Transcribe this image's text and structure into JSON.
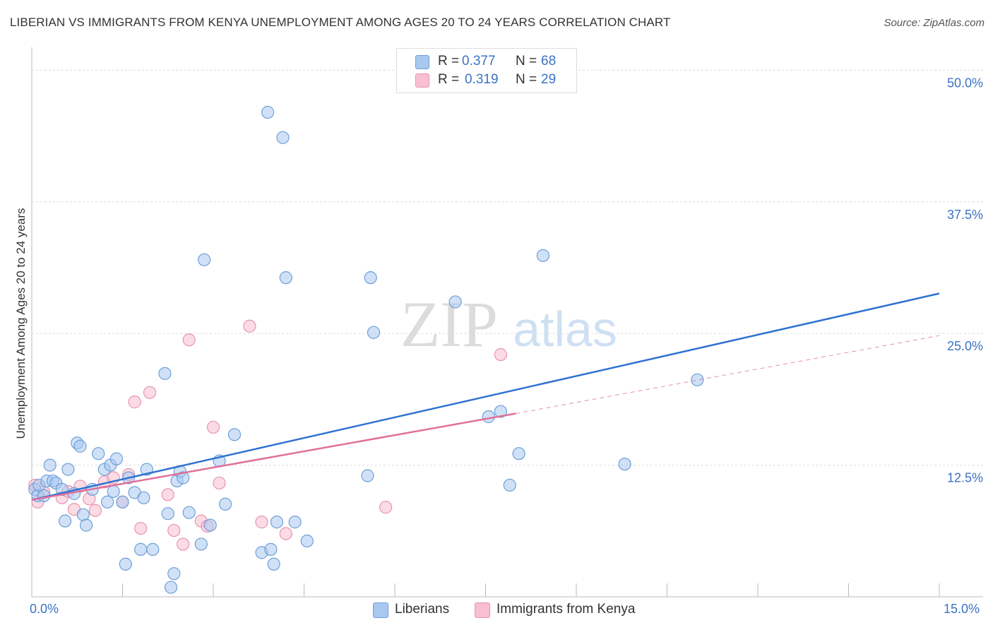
{
  "title": "LIBERIAN VS IMMIGRANTS FROM KENYA UNEMPLOYMENT AMONG AGES 20 TO 24 YEARS CORRELATION CHART",
  "source": "Source: ZipAtlas.com",
  "watermark": {
    "zip": "ZIP",
    "atlas": "atlas"
  },
  "stats": [
    {
      "r_label": "R =",
      "r_value": "0.377",
      "n_label": "N =",
      "n_value": "68"
    },
    {
      "r_label": "R =",
      "r_value": "0.319",
      "n_label": "N =",
      "n_value": "29"
    }
  ],
  "legend": {
    "liberians": "Liberians",
    "kenya": "Immigrants from Kenya"
  },
  "colors": {
    "blue_fill": "#a9c8f0",
    "blue_stroke": "#6e9fd8",
    "blue_line": "#2f72d0",
    "pink_fill": "#f7bfd0",
    "pink_stroke": "#e993b0",
    "pink_line": "#e0709a",
    "tick_text": "#3b73c4",
    "grid": "#dddddd"
  },
  "chart_data": {
    "type": "scatter",
    "title": "LIBERIAN VS IMMIGRANTS FROM KENYA UNEMPLOYMENT AMONG AGES 20 TO 24 YEARS CORRELATION CHART",
    "xlabel": "",
    "ylabel": "Unemployment Among Ages 20 to 24 years",
    "xlim": [
      0,
      15
    ],
    "ylim": [
      0,
      51.5
    ],
    "x_tick_labels": [
      "0.0%",
      "15.0%"
    ],
    "y_ticks": [
      12.5,
      25.0,
      37.5,
      50.0
    ],
    "y_tick_labels": [
      "12.5%",
      "25.0%",
      "37.5%",
      "50.0%"
    ],
    "series": [
      {
        "name": "Liberians",
        "r": 0.377,
        "n": 68,
        "trend": {
          "x": [
            0,
            15
          ],
          "y": [
            9.2,
            28.8
          ],
          "style": "solid"
        },
        "points": [
          [
            0.05,
            10.2
          ],
          [
            0.1,
            9.6
          ],
          [
            0.12,
            10.6
          ],
          [
            0.2,
            9.6
          ],
          [
            0.25,
            11.0
          ],
          [
            0.3,
            12.5
          ],
          [
            0.35,
            11.0
          ],
          [
            0.4,
            10.8
          ],
          [
            0.5,
            10.2
          ],
          [
            0.55,
            7.2
          ],
          [
            0.6,
            12.1
          ],
          [
            0.7,
            9.8
          ],
          [
            0.75,
            14.6
          ],
          [
            0.8,
            14.3
          ],
          [
            0.85,
            7.8
          ],
          [
            0.9,
            6.8
          ],
          [
            1.0,
            10.2
          ],
          [
            1.1,
            13.6
          ],
          [
            1.2,
            12.1
          ],
          [
            1.25,
            9.0
          ],
          [
            1.3,
            12.5
          ],
          [
            1.35,
            10.0
          ],
          [
            1.4,
            13.1
          ],
          [
            1.5,
            9.0
          ],
          [
            1.55,
            3.1
          ],
          [
            1.6,
            11.3
          ],
          [
            1.7,
            9.9
          ],
          [
            1.8,
            4.5
          ],
          [
            1.85,
            9.4
          ],
          [
            1.9,
            12.1
          ],
          [
            2.0,
            4.5
          ],
          [
            2.2,
            21.2
          ],
          [
            2.25,
            7.9
          ],
          [
            2.3,
            0.9
          ],
          [
            2.35,
            2.2
          ],
          [
            2.4,
            11.0
          ],
          [
            2.45,
            11.9
          ],
          [
            2.5,
            11.3
          ],
          [
            2.6,
            8.0
          ],
          [
            2.8,
            5.0
          ],
          [
            2.85,
            32.0
          ],
          [
            2.95,
            6.8
          ],
          [
            3.1,
            12.9
          ],
          [
            3.2,
            8.8
          ],
          [
            3.35,
            15.4
          ],
          [
            3.8,
            4.2
          ],
          [
            3.9,
            46.0
          ],
          [
            3.95,
            4.5
          ],
          [
            4.0,
            3.1
          ],
          [
            4.05,
            7.1
          ],
          [
            4.15,
            43.6
          ],
          [
            4.2,
            30.3
          ],
          [
            4.35,
            7.1
          ],
          [
            4.55,
            5.3
          ],
          [
            5.55,
            11.5
          ],
          [
            5.6,
            30.3
          ],
          [
            5.65,
            25.1
          ],
          [
            7.0,
            28.0
          ],
          [
            7.55,
            17.1
          ],
          [
            7.75,
            17.6
          ],
          [
            7.9,
            10.6
          ],
          [
            8.05,
            13.6
          ],
          [
            8.45,
            32.4
          ],
          [
            9.8,
            12.6
          ],
          [
            11.0,
            20.6
          ]
        ]
      },
      {
        "name": "Immigrants from Kenya",
        "r": 0.319,
        "n": 29,
        "trend": {
          "x": [
            0,
            8.0
          ],
          "y": [
            9.2,
            17.4
          ],
          "style": "solid"
        },
        "trend_ext": {
          "x": [
            8.0,
            15
          ],
          "y": [
            17.4,
            24.8
          ],
          "style": "dashed"
        },
        "points": [
          [
            0.05,
            10.6
          ],
          [
            0.1,
            9.0
          ],
          [
            0.2,
            9.9
          ],
          [
            0.5,
            9.4
          ],
          [
            0.6,
            10.0
          ],
          [
            0.7,
            8.3
          ],
          [
            0.8,
            10.5
          ],
          [
            0.95,
            9.3
          ],
          [
            1.05,
            8.2
          ],
          [
            1.2,
            10.9
          ],
          [
            1.35,
            11.3
          ],
          [
            1.5,
            9.0
          ],
          [
            1.6,
            11.6
          ],
          [
            1.7,
            18.5
          ],
          [
            1.8,
            6.5
          ],
          [
            1.95,
            19.4
          ],
          [
            2.25,
            9.7
          ],
          [
            2.35,
            6.3
          ],
          [
            2.5,
            5.0
          ],
          [
            2.6,
            24.4
          ],
          [
            2.8,
            7.2
          ],
          [
            2.9,
            6.7
          ],
          [
            3.0,
            16.1
          ],
          [
            3.1,
            10.8
          ],
          [
            3.6,
            25.7
          ],
          [
            3.8,
            7.1
          ],
          [
            4.2,
            6.0
          ],
          [
            5.85,
            8.5
          ],
          [
            7.75,
            23.0
          ]
        ]
      }
    ]
  }
}
